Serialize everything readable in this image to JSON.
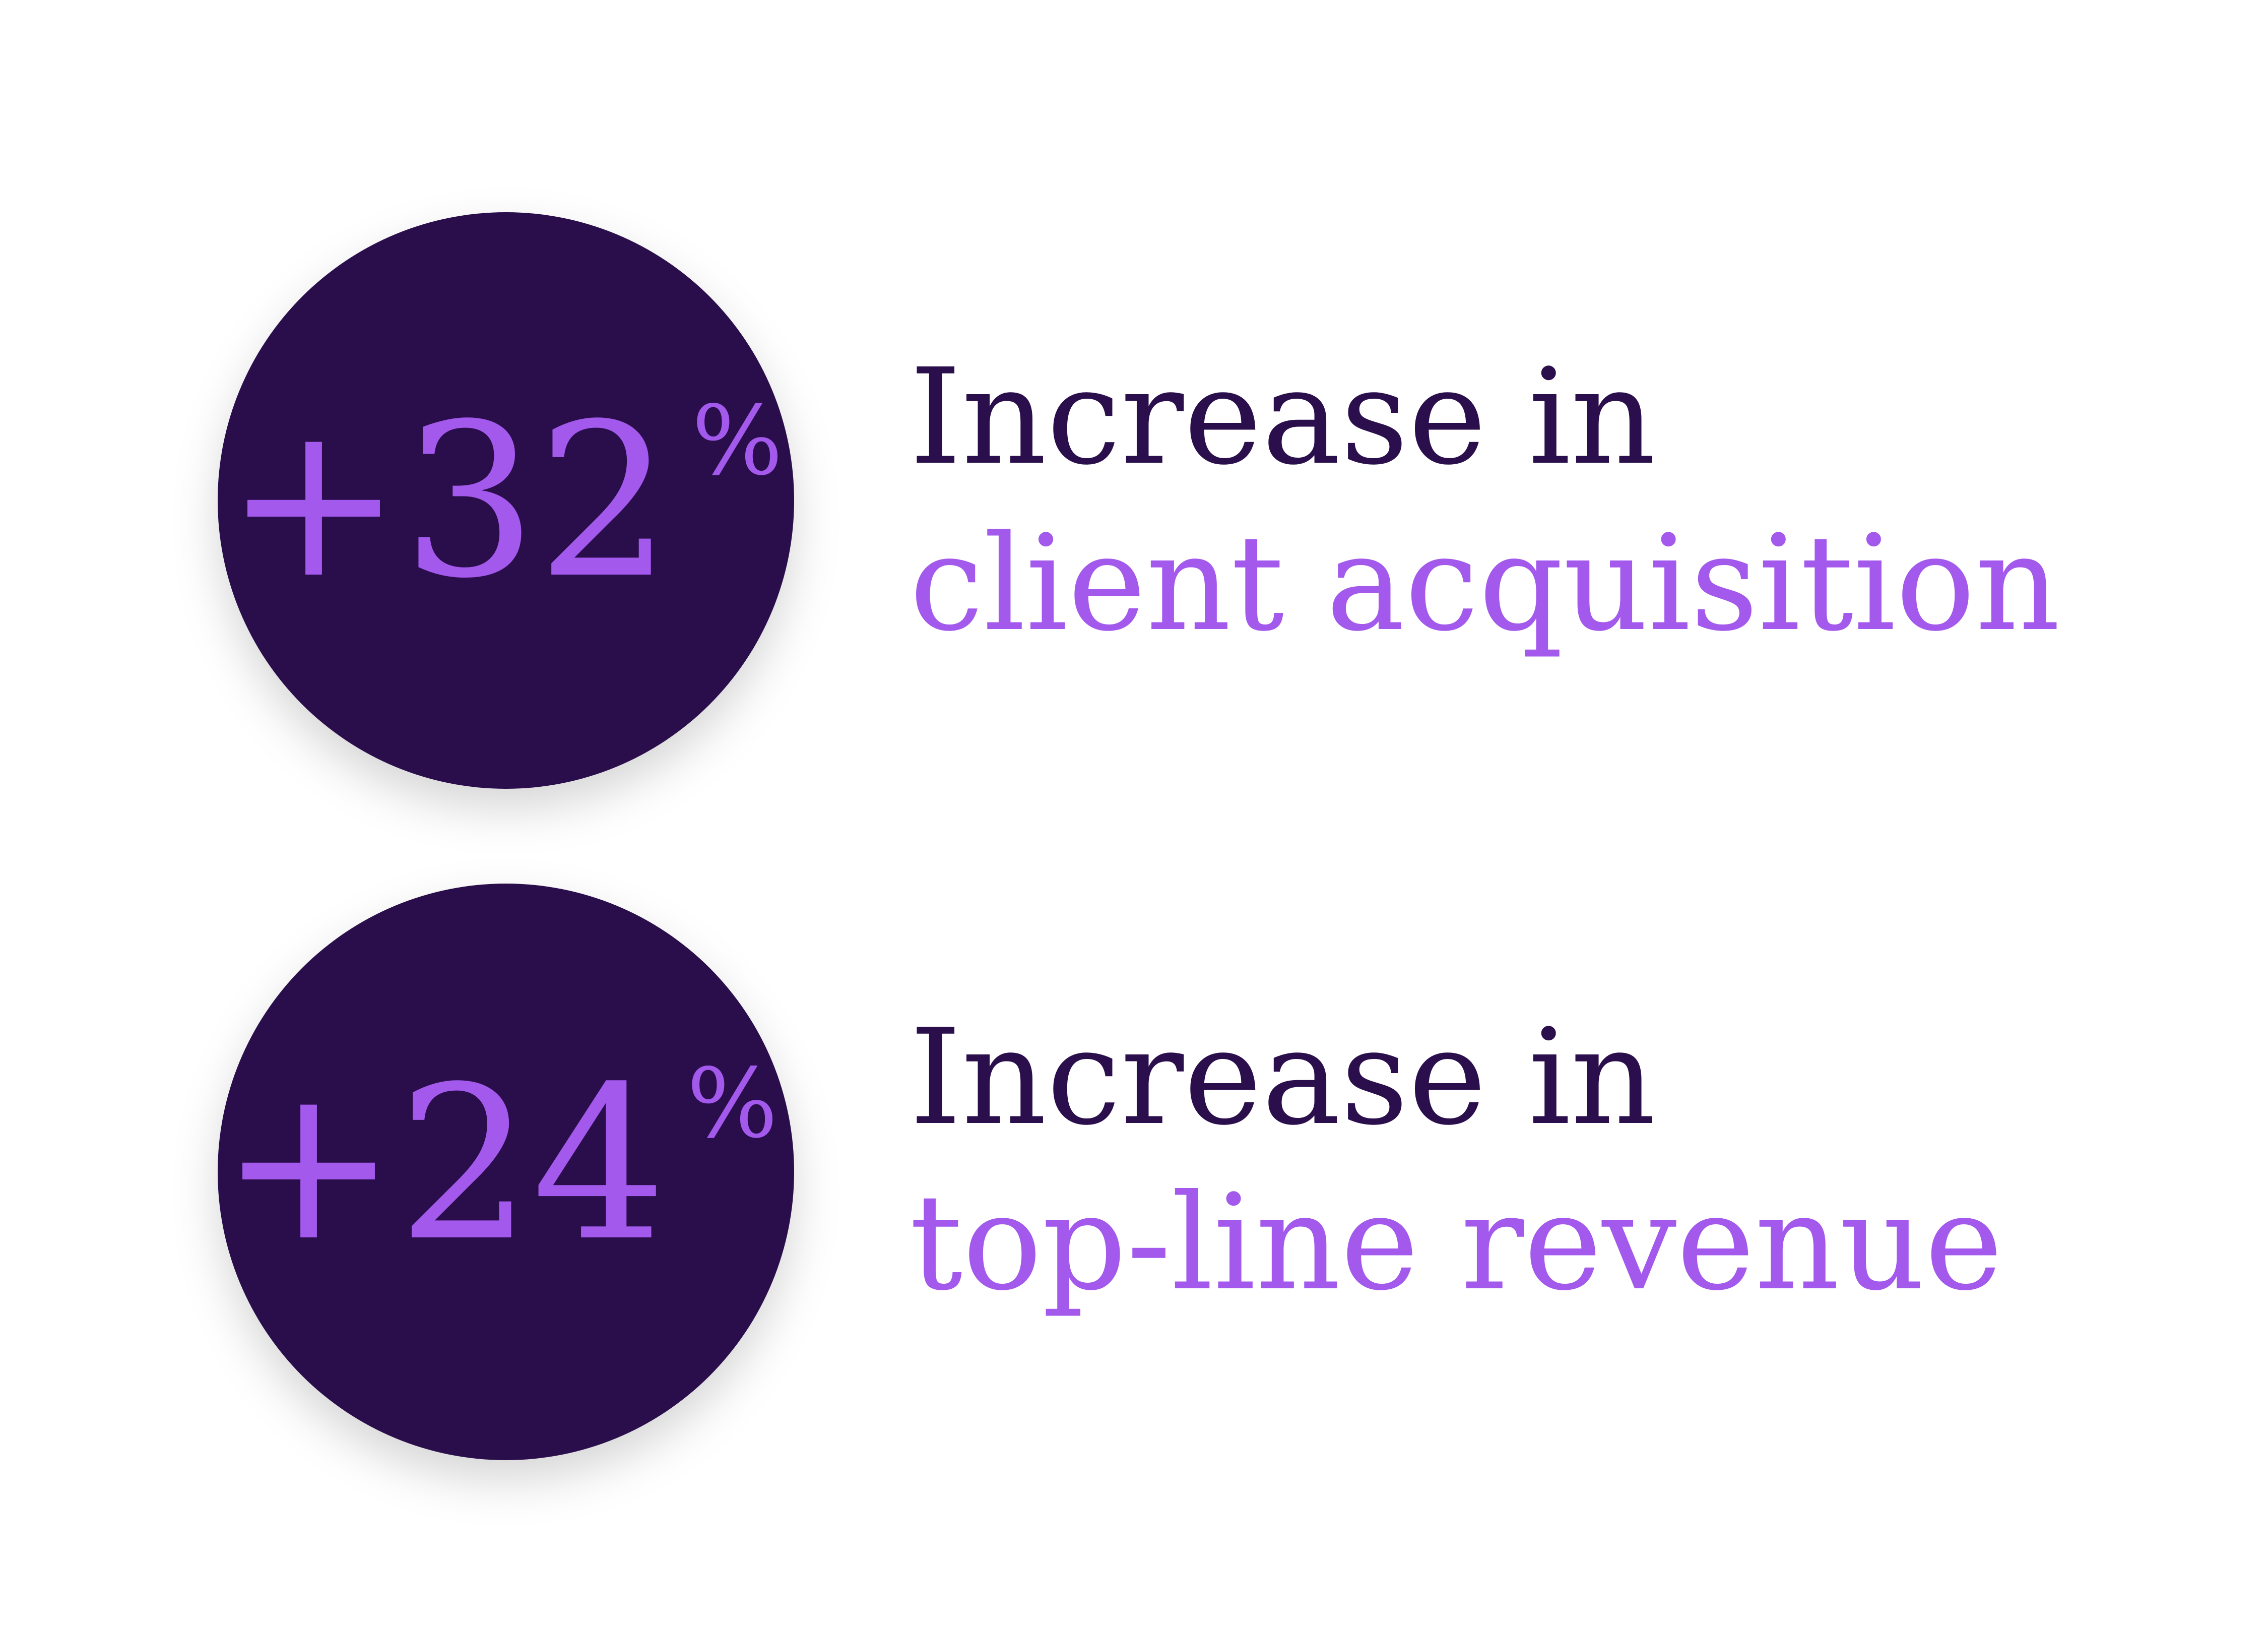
{
  "stats": [
    {
      "value": "+32",
      "unit": "%",
      "line1": "Increase in",
      "line2": "client acquisition"
    },
    {
      "value": "+24",
      "unit": "%",
      "line1": "Increase in",
      "line2": "top-line revenue"
    }
  ]
}
